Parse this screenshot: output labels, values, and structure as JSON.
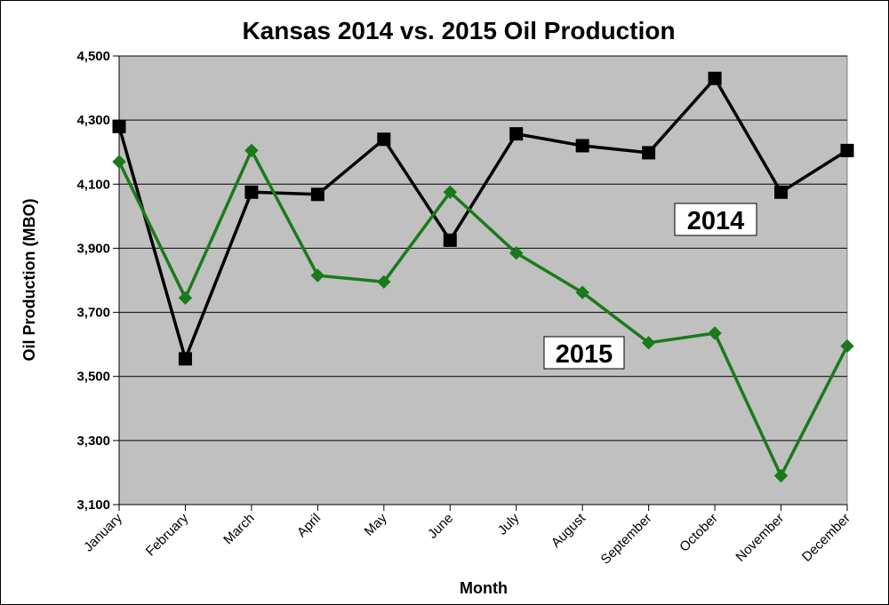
{
  "chart_data": {
    "type": "line",
    "title": "Kansas 2014 vs. 2015 Oil Production",
    "xlabel": "Month",
    "ylabel": "Oil Production (MBO)",
    "ylim": [
      3100,
      4500
    ],
    "y_ticks": [
      3100,
      3300,
      3500,
      3700,
      3900,
      4100,
      4300,
      4500
    ],
    "y_tick_labels": [
      "3,100",
      "3,300",
      "3,500",
      "3,700",
      "3,900",
      "4,100",
      "4,300",
      "4,500"
    ],
    "grid": true,
    "legend": "none",
    "categories": [
      "January",
      "February",
      "March",
      "April",
      "May",
      "June",
      "July",
      "August",
      "September",
      "October",
      "November",
      "December"
    ],
    "series": [
      {
        "name": "2014",
        "color": "#000000",
        "marker": "square",
        "values": [
          4280,
          3555,
          4075,
          4068,
          4240,
          3925,
          4257,
          4220,
          4198,
          4430,
          4075,
          4205
        ]
      },
      {
        "name": "2015",
        "color": "#1a7a1a",
        "marker": "diamond",
        "values": [
          4170,
          3745,
          4205,
          3815,
          3795,
          4075,
          3885,
          3762,
          3605,
          3635,
          3190,
          3595
        ]
      }
    ],
    "plot_background": "#c0c0c0"
  }
}
